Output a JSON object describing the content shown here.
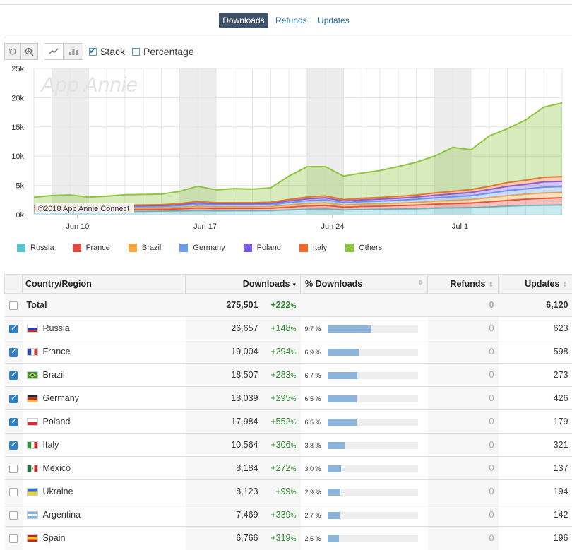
{
  "tabs": [
    {
      "label": "Downloads",
      "active": true
    },
    {
      "label": "Refunds",
      "active": false
    },
    {
      "label": "Updates",
      "active": false
    }
  ],
  "toolbar": {
    "reset_icon": "reset-icon",
    "zoom_icon": "zoom-icon",
    "line_icon": "line-chart-icon",
    "bar_icon": "bar-chart-icon",
    "stack_label": "Stack",
    "stack_checked": true,
    "percentage_label": "Percentage",
    "percentage_checked": false
  },
  "chart_data": {
    "type": "area",
    "watermark": "App Annie",
    "credit": "©2018 App Annie Connect",
    "y_ticks": [
      "25k",
      "20k",
      "15k",
      "10k",
      "5k",
      "0k"
    ],
    "ylim": [
      0,
      25000
    ],
    "x_ticks": [
      {
        "label": "Jun 10",
        "index": 2
      },
      {
        "label": "Jun 17",
        "index": 9
      },
      {
        "label": "Jun 24",
        "index": 16
      },
      {
        "label": "Jul 1",
        "index": 23
      }
    ],
    "n_points": 30,
    "shaded_ranges": [
      [
        1,
        3
      ],
      [
        8,
        10
      ],
      [
        15,
        17
      ],
      [
        22,
        24
      ]
    ],
    "series": [
      {
        "name": "Russia",
        "color": "#5bc4cf",
        "values": [
          500,
          550,
          560,
          520,
          540,
          560,
          560,
          570,
          620,
          700,
          650,
          660,
          660,
          680,
          800,
          900,
          950,
          800,
          850,
          900,
          950,
          1000,
          1100,
          1150,
          1200,
          1300,
          1450,
          1550,
          1600,
          1650
        ]
      },
      {
        "name": "France",
        "color": "#e04a3f",
        "values": [
          300,
          320,
          330,
          300,
          310,
          320,
          330,
          340,
          380,
          450,
          400,
          410,
          410,
          420,
          500,
          600,
          650,
          500,
          550,
          560,
          600,
          650,
          700,
          750,
          800,
          900,
          1000,
          1100,
          1200,
          1250
        ]
      },
      {
        "name": "Brazil",
        "color": "#f4a742",
        "values": [
          200,
          210,
          220,
          200,
          210,
          220,
          220,
          230,
          250,
          300,
          280,
          280,
          280,
          290,
          350,
          400,
          420,
          350,
          380,
          400,
          420,
          450,
          500,
          550,
          600,
          700,
          800,
          850,
          900,
          900
        ]
      },
      {
        "name": "Germany",
        "color": "#6d9eea",
        "values": [
          220,
          230,
          240,
          220,
          230,
          240,
          250,
          260,
          290,
          350,
          320,
          320,
          320,
          330,
          400,
          450,
          480,
          400,
          430,
          450,
          480,
          520,
          560,
          600,
          650,
          750,
          850,
          900,
          1000,
          1000
        ]
      },
      {
        "name": "Poland",
        "color": "#7b5ce0",
        "values": [
          150,
          160,
          160,
          150,
          160,
          160,
          170,
          180,
          200,
          250,
          220,
          220,
          220,
          230,
          300,
          350,
          380,
          300,
          320,
          340,
          360,
          400,
          450,
          500,
          550,
          650,
          750,
          800,
          900,
          900
        ]
      },
      {
        "name": "Italy",
        "color": "#f0692b",
        "values": [
          100,
          110,
          110,
          100,
          110,
          110,
          120,
          130,
          150,
          200,
          170,
          170,
          170,
          180,
          250,
          300,
          330,
          250,
          280,
          300,
          320,
          350,
          400,
          450,
          500,
          550,
          650,
          700,
          800,
          800
        ]
      },
      {
        "name": "Others",
        "color": "#8cc63f",
        "values": [
          1500,
          1700,
          1750,
          1500,
          1600,
          1800,
          1800,
          1800,
          2100,
          2600,
          2200,
          2400,
          2300,
          2450,
          4000,
          5200,
          5000,
          4000,
          4300,
          4600,
          5100,
          5600,
          6300,
          7500,
          6800,
          8600,
          9200,
          10300,
          12000,
          12600
        ]
      }
    ]
  },
  "table": {
    "headers": {
      "country": "Country/Region",
      "downloads": "Downloads",
      "pct": "% Downloads",
      "refunds": "Refunds",
      "updates": "Updates"
    },
    "total": {
      "label": "Total",
      "downloads": "275,501",
      "growth": "+222",
      "refunds": "0",
      "updates": "6,120"
    },
    "rows": [
      {
        "country": "Russia",
        "checked": true,
        "downloads": "26,657",
        "growth": "+148",
        "pct": "9.7 %",
        "pct_value": 9.7,
        "refunds": "0",
        "updates": "623",
        "flag": "russia-flag"
      },
      {
        "country": "France",
        "checked": true,
        "downloads": "19,004",
        "growth": "+294",
        "pct": "6.9 %",
        "pct_value": 6.9,
        "refunds": "0",
        "updates": "598",
        "flag": "france-flag"
      },
      {
        "country": "Brazil",
        "checked": true,
        "downloads": "18,507",
        "growth": "+283",
        "pct": "6.7 %",
        "pct_value": 6.7,
        "refunds": "0",
        "updates": "273",
        "flag": "brazil-flag"
      },
      {
        "country": "Germany",
        "checked": true,
        "downloads": "18,039",
        "growth": "+295",
        "pct": "6.5 %",
        "pct_value": 6.5,
        "refunds": "0",
        "updates": "426",
        "flag": "germany-flag"
      },
      {
        "country": "Poland",
        "checked": true,
        "downloads": "17,984",
        "growth": "+552",
        "pct": "6.5 %",
        "pct_value": 6.5,
        "refunds": "0",
        "updates": "179",
        "flag": "poland-flag"
      },
      {
        "country": "Italy",
        "checked": true,
        "downloads": "10,564",
        "growth": "+306",
        "pct": "3.8 %",
        "pct_value": 3.8,
        "refunds": "0",
        "updates": "321",
        "flag": "italy-flag"
      },
      {
        "country": "Mexico",
        "checked": false,
        "downloads": "8,184",
        "growth": "+272",
        "pct": "3.0 %",
        "pct_value": 3.0,
        "refunds": "0",
        "updates": "137",
        "flag": "mexico-flag"
      },
      {
        "country": "Ukraine",
        "checked": false,
        "downloads": "8,123",
        "growth": "+99",
        "pct": "2.9 %",
        "pct_value": 2.9,
        "refunds": "0",
        "updates": "194",
        "flag": "ukraine-flag"
      },
      {
        "country": "Argentina",
        "checked": false,
        "downloads": "7,469",
        "growth": "+339",
        "pct": "2.7 %",
        "pct_value": 2.7,
        "refunds": "0",
        "updates": "142",
        "flag": "argentina-flag"
      },
      {
        "country": "Spain",
        "checked": false,
        "downloads": "6,766",
        "growth": "+319",
        "pct": "2.5 %",
        "pct_value": 2.5,
        "refunds": "0",
        "updates": "196",
        "flag": "spain-flag"
      }
    ]
  }
}
